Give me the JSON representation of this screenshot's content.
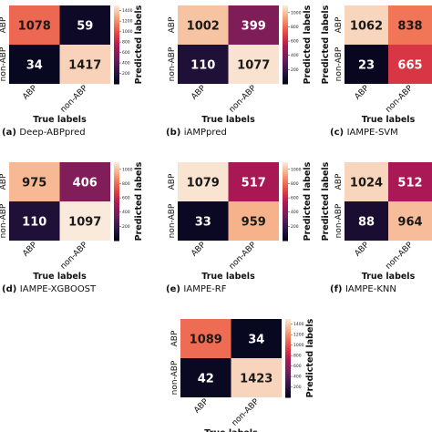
{
  "chart_data": [
    {
      "type": "heatmap",
      "caption_letter": "(a)",
      "caption_name": "Deep-ABPpred",
      "xlabel": "True labels",
      "ylabel": "Predicted labels",
      "x_ticks": [
        "ABP",
        "non-ABP"
      ],
      "y_ticks": [
        "ABP",
        "non-ABP"
      ],
      "matrix": [
        [
          1078,
          59
        ],
        [
          34,
          1417
        ]
      ],
      "colorbar": {
        "min": 0,
        "max": 1500,
        "ticks": [
          200,
          400,
          600,
          800,
          1000,
          1200,
          1400
        ]
      }
    },
    {
      "type": "heatmap",
      "caption_letter": "(b)",
      "caption_name": "iAMPpred",
      "xlabel": "True labels",
      "ylabel": "Predicted labels",
      "x_ticks": [
        "ABP",
        "non-ABP"
      ],
      "y_ticks": [
        "ABP",
        "non-ABP"
      ],
      "matrix": [
        [
          1002,
          399
        ],
        [
          110,
          1077
        ]
      ],
      "colorbar": {
        "min": 0,
        "max": 1100,
        "ticks": [
          200,
          400,
          600,
          800,
          1000
        ]
      }
    },
    {
      "type": "heatmap",
      "caption_letter": "(c)",
      "caption_name": "IAMPE-SVM",
      "xlabel": "True labels",
      "ylabel": "Predicted labels",
      "x_ticks": [
        "ABP",
        "non-ABP"
      ],
      "y_ticks": [
        "ABP",
        "non-ABP"
      ],
      "matrix": [
        [
          1062,
          838
        ],
        [
          23,
          665
        ]
      ],
      "colorbar": null
    },
    {
      "type": "heatmap",
      "caption_letter": "(d)",
      "caption_name": "IAMPE-XGBOOST",
      "xlabel": "True labels",
      "ylabel": "Predicted labels",
      "x_ticks": [
        "ABP",
        "non-ABP"
      ],
      "y_ticks": [
        "ABP",
        "non-ABP"
      ],
      "matrix": [
        [
          975,
          406
        ],
        [
          110,
          1097
        ]
      ],
      "colorbar": {
        "min": 0,
        "max": 1100,
        "ticks": [
          200,
          400,
          600,
          800,
          1000
        ]
      }
    },
    {
      "type": "heatmap",
      "caption_letter": "(e)",
      "caption_name": "IAMPE-RF",
      "xlabel": "True labels",
      "ylabel": "Predicted labels",
      "x_ticks": [
        "ABP",
        "non-ABP"
      ],
      "y_ticks": [
        "ABP",
        "non-ABP"
      ],
      "matrix": [
        [
          1079,
          517
        ],
        [
          33,
          959
        ]
      ],
      "colorbar": {
        "min": 0,
        "max": 1100,
        "ticks": [
          200,
          400,
          600,
          800,
          1000
        ]
      }
    },
    {
      "type": "heatmap",
      "caption_letter": "(f)",
      "caption_name": "IAMPE-KNN",
      "xlabel": "True labels",
      "ylabel": "Predicted labels",
      "x_ticks": [
        "ABP",
        "non-ABP"
      ],
      "y_ticks": [
        "ABP",
        "non-ABP"
      ],
      "matrix": [
        [
          1024,
          512
        ],
        [
          88,
          964
        ]
      ],
      "colorbar": null
    },
    {
      "type": "heatmap",
      "caption_letter": "",
      "caption_name": "",
      "xlabel": "True labels",
      "ylabel": "Predicted labels",
      "x_ticks": [
        "ABP",
        "non-ABP"
      ],
      "y_ticks": [
        "ABP",
        "non-ABP"
      ],
      "matrix": [
        [
          1089,
          34
        ],
        [
          42,
          1423
        ]
      ],
      "colorbar": {
        "min": 0,
        "max": 1500,
        "ticks": [
          200,
          400,
          600,
          800,
          1000,
          1200,
          1400
        ]
      }
    }
  ]
}
